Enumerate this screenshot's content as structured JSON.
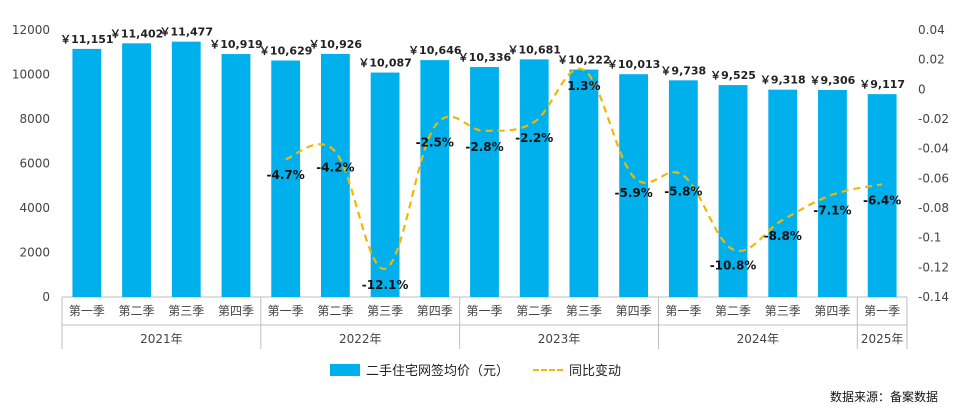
{
  "colors": {
    "bar": "#00b0ec",
    "line": "#f2b705",
    "axis_text": "#444444",
    "grid": "#d9d9d9"
  },
  "chart_data": {
    "type": "bar",
    "categories": [
      "第一季",
      "第二季",
      "第三季",
      "第四季",
      "第一季",
      "第二季",
      "第三季",
      "第四季",
      "第一季",
      "第二季",
      "第三季",
      "第四季",
      "第一季",
      "第二季",
      "第三季",
      "第四季",
      "第一季"
    ],
    "groups": [
      {
        "label": "2021年",
        "count": 4
      },
      {
        "label": "2022年",
        "count": 4
      },
      {
        "label": "2023年",
        "count": 4
      },
      {
        "label": "2024年",
        "count": 4
      },
      {
        "label": "2025年",
        "count": 1
      }
    ],
    "series": [
      {
        "name": "二手住宅网签均价（元）",
        "type": "bar",
        "axis": "left",
        "values": [
          11151,
          11402,
          11477,
          10919,
          10629,
          10926,
          10087,
          10646,
          10336,
          10681,
          10222,
          10013,
          9738,
          9525,
          9318,
          9306,
          9117
        ],
        "labels": [
          "￥11,151",
          "￥11,402",
          "￥11,477",
          "￥10,919",
          "￥10,629",
          "￥10,926",
          "￥10,087",
          "￥10,646",
          "￥10,336",
          "￥10,681",
          "￥10,222",
          "￥10,013",
          "￥9,738",
          "￥9,525",
          "￥9,318",
          "￥9,306",
          "￥9,117"
        ]
      },
      {
        "name": "同比变动",
        "type": "line",
        "axis": "right",
        "values": [
          null,
          null,
          null,
          null,
          -0.047,
          -0.042,
          -0.121,
          -0.025,
          -0.028,
          -0.022,
          0.013,
          -0.059,
          -0.058,
          -0.108,
          -0.088,
          -0.071,
          -0.064
        ],
        "labels": [
          "",
          "",
          "",
          "",
          "-4.7%",
          "-4.2%",
          "-12.1%",
          "-2.5%",
          "-2.8%",
          "-2.2%",
          "1.3%",
          "-5.9%",
          "-5.8%",
          "-10.8%",
          "-8.8%",
          "-7.1%",
          "-6.4%"
        ]
      }
    ],
    "ylim_left": [
      0,
      12000
    ],
    "yticks_left": [
      "0",
      "2000",
      "4000",
      "6000",
      "8000",
      "10000",
      "12000"
    ],
    "ylim_right": [
      -0.14,
      0.04
    ],
    "yticks_right": [
      "-0.14",
      "-0.12",
      "-0.1",
      "-0.08",
      "-0.06",
      "-0.04",
      "-0.02",
      "0",
      "0.02",
      "0.04"
    ],
    "legend_position": "bottom",
    "grid": false
  },
  "source_text": "数据来源：备案数据"
}
